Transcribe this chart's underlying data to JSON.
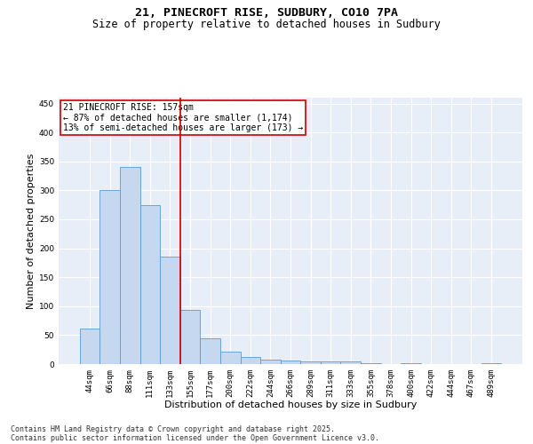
{
  "title_line1": "21, PINECROFT RISE, SUDBURY, CO10 7PA",
  "title_line2": "Size of property relative to detached houses in Sudbury",
  "xlabel": "Distribution of detached houses by size in Sudbury",
  "ylabel": "Number of detached properties",
  "categories": [
    "44sqm",
    "66sqm",
    "88sqm",
    "111sqm",
    "133sqm",
    "155sqm",
    "177sqm",
    "200sqm",
    "222sqm",
    "244sqm",
    "266sqm",
    "289sqm",
    "311sqm",
    "333sqm",
    "355sqm",
    "378sqm",
    "400sqm",
    "422sqm",
    "444sqm",
    "467sqm",
    "489sqm"
  ],
  "values": [
    62,
    300,
    340,
    275,
    185,
    93,
    45,
    22,
    13,
    7,
    6,
    5,
    4,
    5,
    2,
    0,
    2,
    0,
    0,
    0,
    2
  ],
  "bar_color": "#c5d8f0",
  "bar_edge_color": "#5b9bd5",
  "vline_color": "#cc0000",
  "annotation_text": "21 PINECROFT RISE: 157sqm\n← 87% of detached houses are smaller (1,174)\n13% of semi-detached houses are larger (173) →",
  "annotation_box_color": "#cc0000",
  "ylim": [
    0,
    460
  ],
  "yticks": [
    0,
    50,
    100,
    150,
    200,
    250,
    300,
    350,
    400,
    450
  ],
  "bg_color": "#e8eef7",
  "grid_color": "#ffffff",
  "footnote1": "Contains HM Land Registry data © Crown copyright and database right 2025.",
  "footnote2": "Contains public sector information licensed under the Open Government Licence v3.0.",
  "title_fontsize": 9.5,
  "subtitle_fontsize": 8.5,
  "xlabel_fontsize": 8,
  "ylabel_fontsize": 8,
  "tick_fontsize": 6.5,
  "annotation_fontsize": 7,
  "footnote_fontsize": 6
}
